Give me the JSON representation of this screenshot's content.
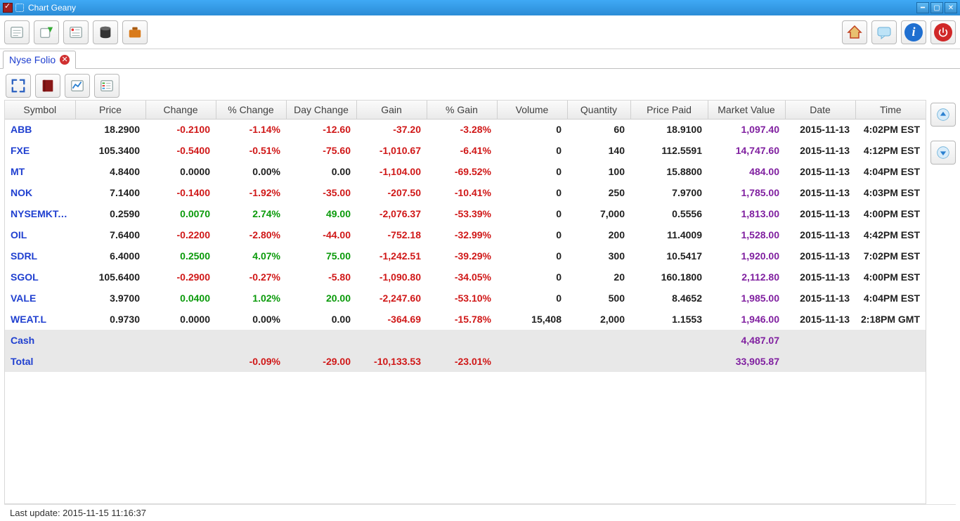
{
  "window": {
    "title": "Chart Geany"
  },
  "tab": {
    "label": "Nyse Folio"
  },
  "columns": [
    "Symbol",
    "Price",
    "Change",
    "% Change",
    "Day Change",
    "Gain",
    "% Gain",
    "Volume",
    "Quantity",
    "Price Paid",
    "Market Value",
    "Date",
    "Time"
  ],
  "rows": [
    {
      "symbol": "ABB",
      "price": "18.2900",
      "change": "-0.2100",
      "change_cls": "neg",
      "pchange": "-1.14%",
      "pchange_cls": "neg",
      "daychange": "-12.60",
      "daychange_cls": "neg",
      "gain": "-37.20",
      "gain_cls": "neg",
      "pgain": "-3.28%",
      "pgain_cls": "neg",
      "volume": "0",
      "quantity": "60",
      "ppaid": "18.9100",
      "mv": "1,097.40",
      "date": "2015-11-13",
      "time": "4:02PM EST"
    },
    {
      "symbol": "FXE",
      "price": "105.3400",
      "change": "-0.5400",
      "change_cls": "neg",
      "pchange": "-0.51%",
      "pchange_cls": "neg",
      "daychange": "-75.60",
      "daychange_cls": "neg",
      "gain": "-1,010.67",
      "gain_cls": "neg",
      "pgain": "-6.41%",
      "pgain_cls": "neg",
      "volume": "0",
      "quantity": "140",
      "ppaid": "112.5591",
      "mv": "14,747.60",
      "date": "2015-11-13",
      "time": "4:12PM EST"
    },
    {
      "symbol": "MT",
      "price": "4.8400",
      "change": "0.0000",
      "change_cls": "plain",
      "pchange": "0.00%",
      "pchange_cls": "plain",
      "daychange": "0.00",
      "daychange_cls": "plain",
      "gain": "-1,104.00",
      "gain_cls": "neg",
      "pgain": "-69.52%",
      "pgain_cls": "neg",
      "volume": "0",
      "quantity": "100",
      "ppaid": "15.8800",
      "mv": "484.00",
      "date": "2015-11-13",
      "time": "4:04PM EST"
    },
    {
      "symbol": "NOK",
      "price": "7.1400",
      "change": "-0.1400",
      "change_cls": "neg",
      "pchange": "-1.92%",
      "pchange_cls": "neg",
      "daychange": "-35.00",
      "daychange_cls": "neg",
      "gain": "-207.50",
      "gain_cls": "neg",
      "pgain": "-10.41%",
      "pgain_cls": "neg",
      "volume": "0",
      "quantity": "250",
      "ppaid": "7.9700",
      "mv": "1,785.00",
      "date": "2015-11-13",
      "time": "4:03PM EST"
    },
    {
      "symbol": "NYSEMKT:G...",
      "price": "0.2590",
      "change": "0.0070",
      "change_cls": "pos",
      "pchange": "2.74%",
      "pchange_cls": "pos",
      "daychange": "49.00",
      "daychange_cls": "pos",
      "gain": "-2,076.37",
      "gain_cls": "neg",
      "pgain": "-53.39%",
      "pgain_cls": "neg",
      "volume": "0",
      "quantity": "7,000",
      "ppaid": "0.5556",
      "mv": "1,813.00",
      "date": "2015-11-13",
      "time": "4:00PM EST"
    },
    {
      "symbol": "OIL",
      "price": "7.6400",
      "change": "-0.2200",
      "change_cls": "neg",
      "pchange": "-2.80%",
      "pchange_cls": "neg",
      "daychange": "-44.00",
      "daychange_cls": "neg",
      "gain": "-752.18",
      "gain_cls": "neg",
      "pgain": "-32.99%",
      "pgain_cls": "neg",
      "volume": "0",
      "quantity": "200",
      "ppaid": "11.4009",
      "mv": "1,528.00",
      "date": "2015-11-13",
      "time": "4:42PM EST"
    },
    {
      "symbol": "SDRL",
      "price": "6.4000",
      "change": "0.2500",
      "change_cls": "pos",
      "pchange": "4.07%",
      "pchange_cls": "pos",
      "daychange": "75.00",
      "daychange_cls": "pos",
      "gain": "-1,242.51",
      "gain_cls": "neg",
      "pgain": "-39.29%",
      "pgain_cls": "neg",
      "volume": "0",
      "quantity": "300",
      "ppaid": "10.5417",
      "mv": "1,920.00",
      "date": "2015-11-13",
      "time": "7:02PM EST"
    },
    {
      "symbol": "SGOL",
      "price": "105.6400",
      "change": "-0.2900",
      "change_cls": "neg",
      "pchange": "-0.27%",
      "pchange_cls": "neg",
      "daychange": "-5.80",
      "daychange_cls": "neg",
      "gain": "-1,090.80",
      "gain_cls": "neg",
      "pgain": "-34.05%",
      "pgain_cls": "neg",
      "volume": "0",
      "quantity": "20",
      "ppaid": "160.1800",
      "mv": "2,112.80",
      "date": "2015-11-13",
      "time": "4:00PM EST"
    },
    {
      "symbol": "VALE",
      "price": "3.9700",
      "change": "0.0400",
      "change_cls": "pos",
      "pchange": "1.02%",
      "pchange_cls": "pos",
      "daychange": "20.00",
      "daychange_cls": "pos",
      "gain": "-2,247.60",
      "gain_cls": "neg",
      "pgain": "-53.10%",
      "pgain_cls": "neg",
      "volume": "0",
      "quantity": "500",
      "ppaid": "8.4652",
      "mv": "1,985.00",
      "date": "2015-11-13",
      "time": "4:04PM EST"
    },
    {
      "symbol": "WEAT.L",
      "price": "0.9730",
      "change": "0.0000",
      "change_cls": "plain",
      "pchange": "0.00%",
      "pchange_cls": "plain",
      "daychange": "0.00",
      "daychange_cls": "plain",
      "gain": "-364.69",
      "gain_cls": "neg",
      "pgain": "-15.78%",
      "pgain_cls": "neg",
      "volume": "15,408",
      "quantity": "2,000",
      "ppaid": "1.1553",
      "mv": "1,946.00",
      "date": "2015-11-13",
      "time": "2:18PM GMT"
    }
  ],
  "cash": {
    "label": "Cash",
    "mv": "4,487.07"
  },
  "total": {
    "label": "Total",
    "pchange": "-0.09%",
    "daychange": "-29.00",
    "gain": "-10,133.53",
    "pgain": "-23.01%",
    "mv": "33,905.87"
  },
  "status": {
    "last_update": "Last update: 2015-11-15 11:16:37"
  },
  "colors": {
    "neg": "#d01818",
    "pos": "#0a9a0a",
    "mv": "#8020a0",
    "symbol": "#2040d0",
    "summary_bg": "#e8e8e8",
    "titlebar_top": "#3fa9f5",
    "titlebar_bottom": "#2b8cd6"
  }
}
